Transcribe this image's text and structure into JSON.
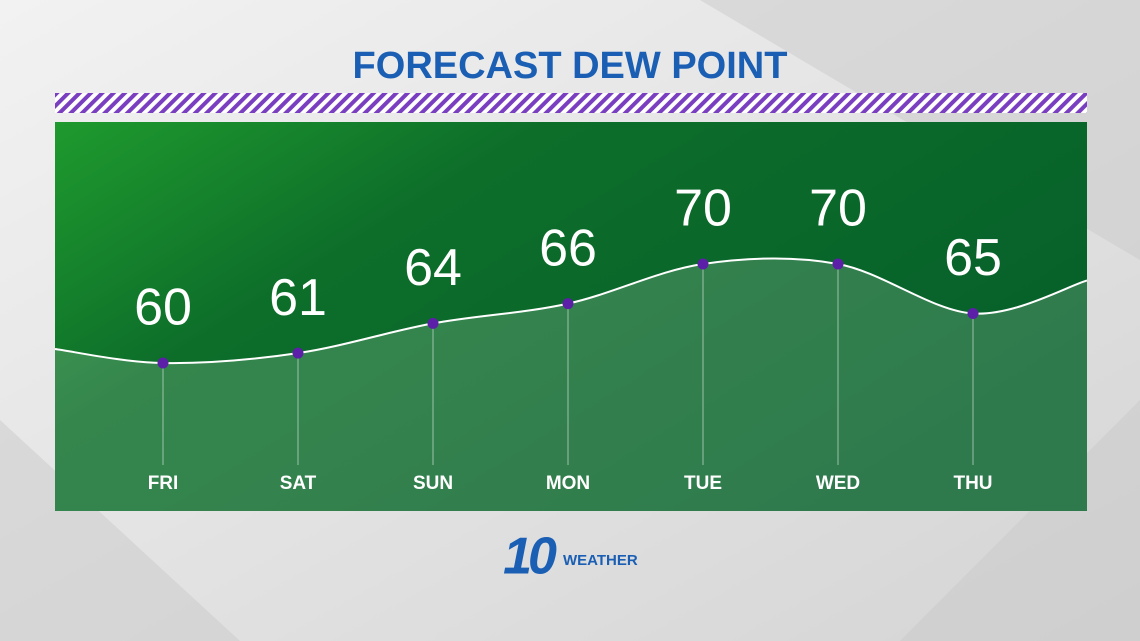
{
  "chart_data": {
    "type": "line",
    "title": "FORECAST DEW POINT",
    "categories": [
      "FRI",
      "SAT",
      "SUN",
      "MON",
      "TUE",
      "WED",
      "THU"
    ],
    "values": [
      60,
      61,
      64,
      66,
      70,
      70,
      65
    ],
    "color": "#5b1fa8"
  },
  "logo": {
    "number": "10",
    "text": "WEATHER"
  }
}
